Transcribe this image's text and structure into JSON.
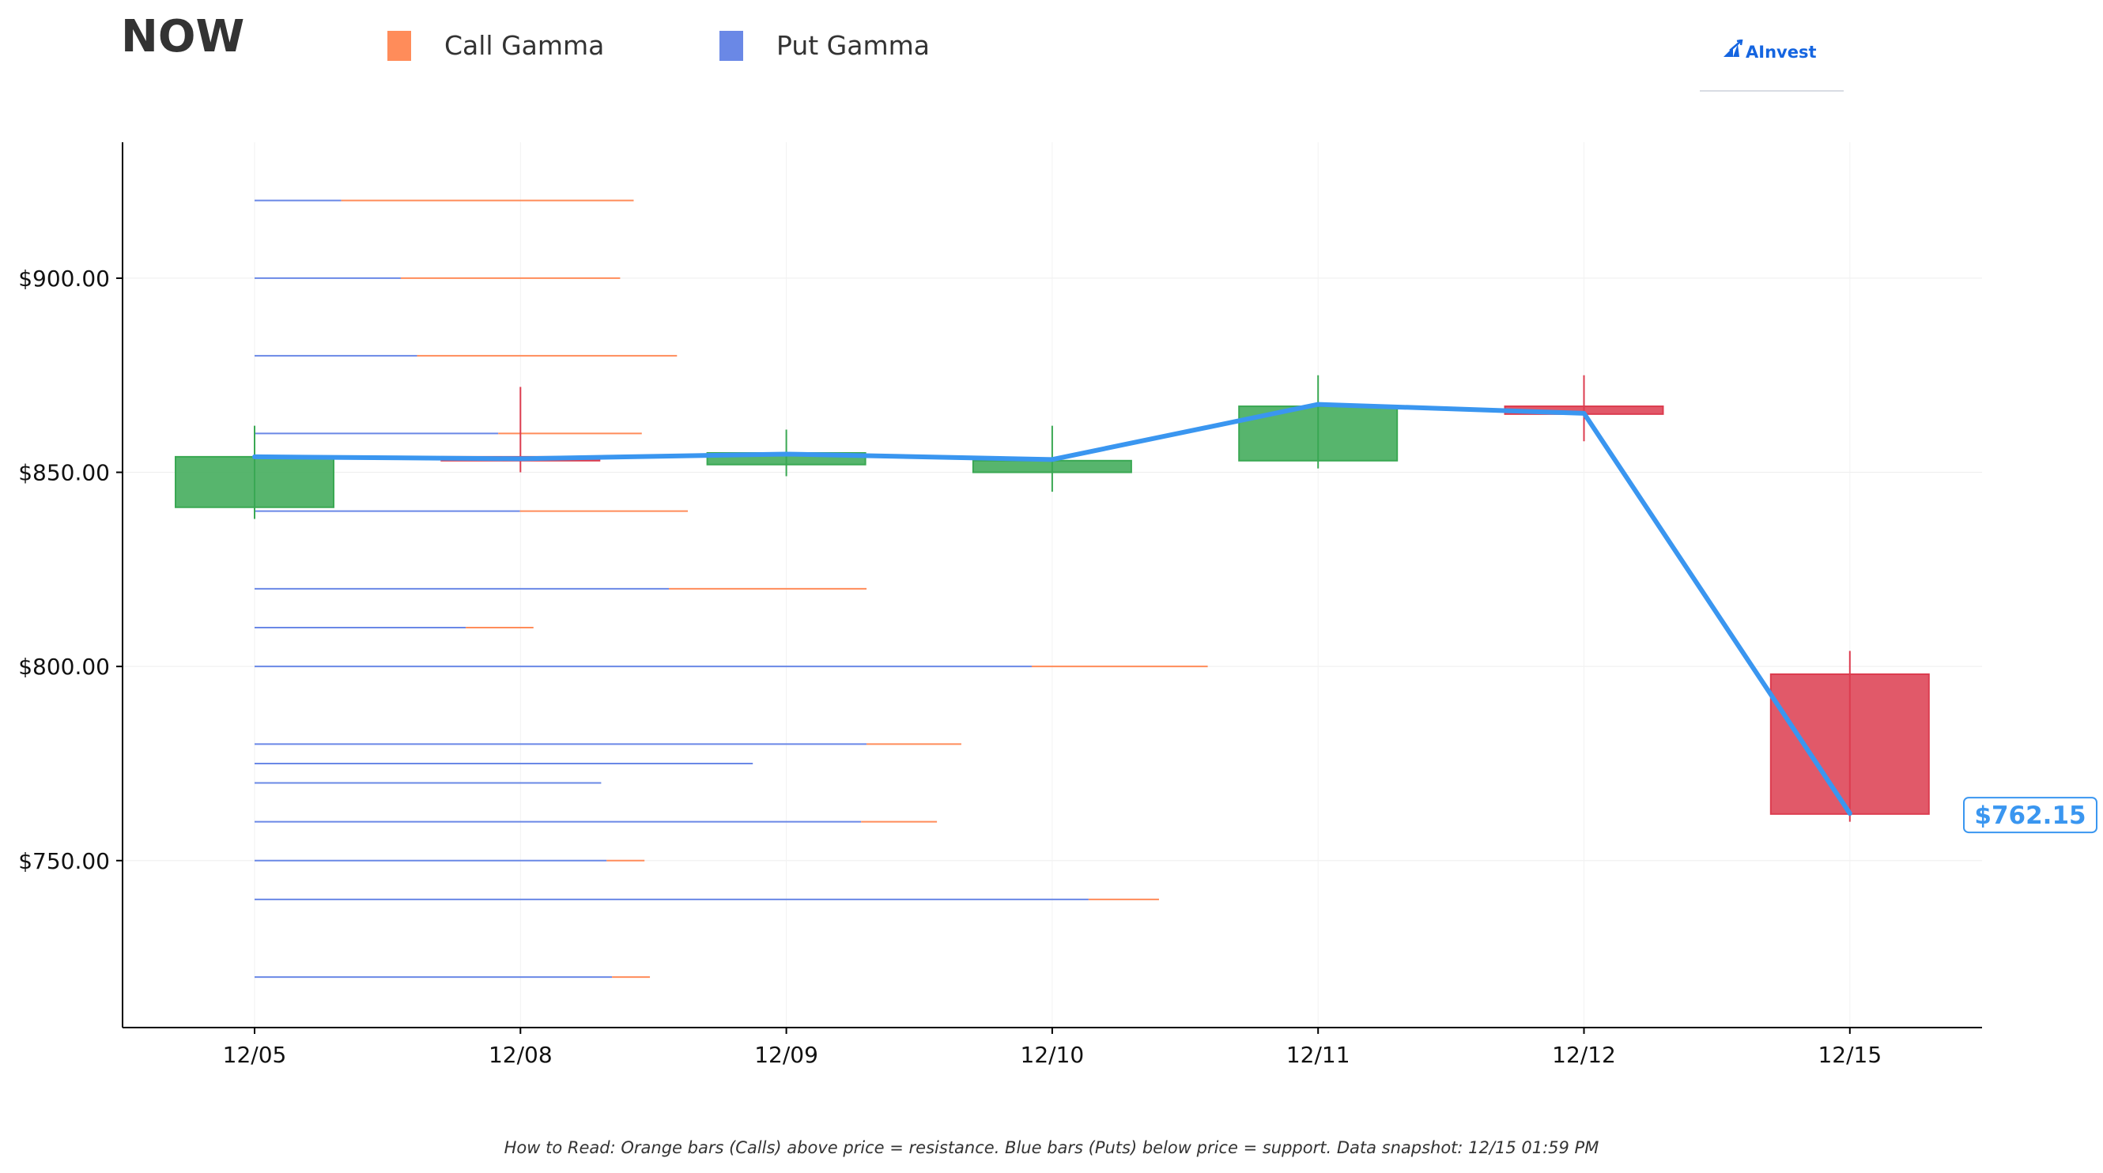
{
  "header": {
    "ticker": "NOW"
  },
  "legend": [
    {
      "label": "Call Gamma",
      "color": "#ff8c5a",
      "icon": "square-swatch"
    },
    {
      "label": "Put Gamma",
      "color": "#6a88e6",
      "icon": "square-swatch"
    }
  ],
  "logo": {
    "text": "AInvest",
    "icon": "ainvest-logo-icon"
  },
  "footnote": "How to Read: Orange bars (Calls) above price = resistance. Blue bars (Puts) below price = support. Data snapshot: 12/15 01:59 PM",
  "chart_data": {
    "type": "candlestick",
    "categories": [
      "12/05",
      "12/08",
      "12/09",
      "12/10",
      "12/11",
      "12/12",
      "12/15"
    ],
    "ylim": [
      707,
      935
    ],
    "yticks": [
      750,
      800,
      850,
      900
    ],
    "ytick_labels": [
      "$750.00",
      "$800.00",
      "$850.00",
      "$900.00"
    ],
    "grid": true,
    "candles": [
      {
        "date": "12/05",
        "open": 841,
        "high": 862,
        "low": 838,
        "close": 854
      },
      {
        "date": "12/08",
        "open": 854,
        "high": 872,
        "low": 850,
        "close": 853
      },
      {
        "date": "12/09",
        "open": 852,
        "high": 861,
        "low": 849,
        "close": 855
      },
      {
        "date": "12/10",
        "open": 850,
        "high": 862,
        "low": 845,
        "close": 853
      },
      {
        "date": "12/11",
        "open": 853,
        "high": 875,
        "low": 851,
        "close": 867
      },
      {
        "date": "12/12",
        "open": 867,
        "high": 875,
        "low": 858,
        "close": 865
      },
      {
        "date": "12/15",
        "open": 798,
        "high": 804,
        "low": 760,
        "close": 762
      }
    ],
    "candle_colors": {
      "up": "#3aa853",
      "down": "#dc3c4f"
    },
    "price_line": {
      "name": "Close",
      "color": "#3a96f0",
      "values": [
        854,
        853.5,
        854.7,
        853.3,
        867.5,
        865.2,
        762.15
      ]
    },
    "last_price_label": "$762.15",
    "gamma_levels": [
      {
        "strike": 920,
        "put": 1.6,
        "call": 5.4
      },
      {
        "strike": 900,
        "put": 2.7,
        "call": 4.05
      },
      {
        "strike": 880,
        "put": 3.0,
        "call": 4.8
      },
      {
        "strike": 860,
        "put": 4.5,
        "call": 2.65
      },
      {
        "strike": 840,
        "put": 4.9,
        "call": 3.1
      },
      {
        "strike": 820,
        "put": 7.65,
        "call": 3.65
      },
      {
        "strike": 810,
        "put": 3.9,
        "call": 1.25
      },
      {
        "strike": 800,
        "put": 14.35,
        "call": 3.25
      },
      {
        "strike": 780,
        "put": 11.3,
        "call": 1.75
      },
      {
        "strike": 775,
        "put": 9.2,
        "call": 0
      },
      {
        "strike": 770,
        "put": 6.4,
        "call": 0.0
      },
      {
        "strike": 760,
        "put": 11.2,
        "call": 1.4
      },
      {
        "strike": 750,
        "put": 6.5,
        "call": 0.7
      },
      {
        "strike": 740,
        "put": 15.4,
        "call": 1.3
      },
      {
        "strike": 720,
        "put": 6.6,
        "call": 0.7
      }
    ],
    "gamma_colors": {
      "call": "#ff8c5a",
      "put": "#6a88e6"
    }
  }
}
